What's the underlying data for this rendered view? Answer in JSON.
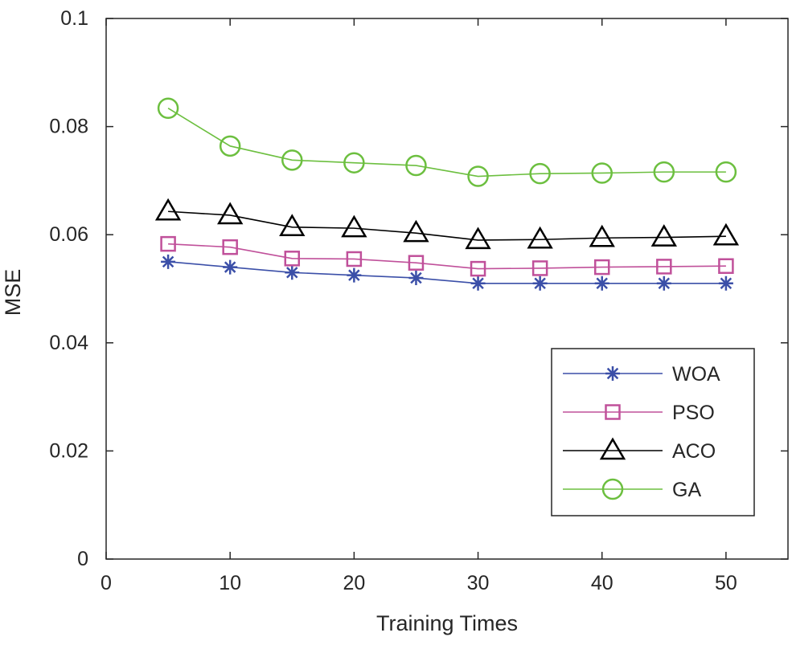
{
  "chart_data": {
    "type": "line",
    "title": "",
    "xlabel": "Training Times",
    "ylabel": "MSE",
    "xlim": [
      0,
      55
    ],
    "ylim": [
      0,
      0.1
    ],
    "x_ticks": [
      0,
      10,
      20,
      30,
      40,
      50
    ],
    "x_tick_labels": [
      "0",
      "10",
      "20",
      "30",
      "40",
      "50"
    ],
    "y_ticks": [
      0,
      0.02,
      0.04,
      0.06,
      0.08,
      0.1
    ],
    "y_tick_labels": [
      "0",
      "0.02",
      "0.04",
      "0.06",
      "0.08",
      "0.1"
    ],
    "grid": false,
    "legend_position": "bottom-right",
    "x": [
      5,
      10,
      15,
      20,
      25,
      30,
      35,
      40,
      45,
      50
    ],
    "series": [
      {
        "name": "WOA",
        "color": "#3b4fa8",
        "marker": "asterisk",
        "values": [
          0.055,
          0.054,
          0.053,
          0.0525,
          0.052,
          0.051,
          0.051,
          0.051,
          0.051,
          0.051
        ]
      },
      {
        "name": "PSO",
        "color": "#c0509a",
        "marker": "square",
        "values": [
          0.0583,
          0.0577,
          0.0556,
          0.0555,
          0.0548,
          0.0537,
          0.0538,
          0.054,
          0.0541,
          0.0542
        ]
      },
      {
        "name": "ACO",
        "color": "#000000",
        "marker": "triangle",
        "values": [
          0.0643,
          0.0636,
          0.0614,
          0.0612,
          0.0603,
          0.059,
          0.0591,
          0.0594,
          0.0595,
          0.0597
        ]
      },
      {
        "name": "GA",
        "color": "#6cbf3f",
        "marker": "circle",
        "values": [
          0.0834,
          0.0764,
          0.0738,
          0.0733,
          0.0728,
          0.0708,
          0.0713,
          0.0714,
          0.0716,
          0.0716
        ]
      }
    ]
  }
}
